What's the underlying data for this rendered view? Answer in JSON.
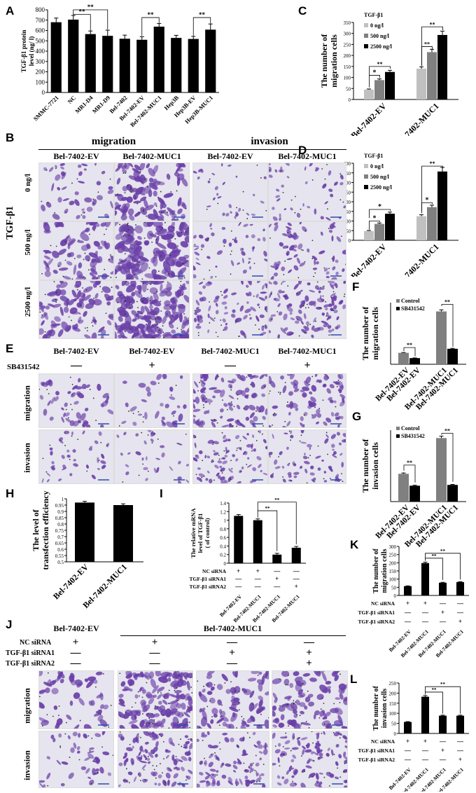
{
  "panels": {
    "A": "A",
    "B": "B",
    "C": "C",
    "D": "D",
    "E": "E",
    "F": "F",
    "G": "G",
    "H": "H",
    "I": "I",
    "J": "J",
    "K": "K",
    "L": "L"
  },
  "colors": {
    "light_gray": "#c0c0c0",
    "mid_gray": "#808080",
    "black": "#000000",
    "stain_purple": "#6a3fa8",
    "stain_bg": "#e6e4ee"
  },
  "chart_data": [
    {
      "id": "A",
      "type": "bar",
      "ylabel": "TGF-β1 protein level (ng/ l)",
      "ylim": [
        0,
        800
      ],
      "yticks": [
        0,
        100,
        200,
        300,
        400,
        500,
        600,
        700,
        800
      ],
      "categories": [
        "SMMC-7721",
        "NC",
        "MR1-D4",
        "MR1-D9",
        "Bel-7402",
        "Bel-7402-EV",
        "Bel-7402-MUC1",
        "Hep3B",
        "Hep3B-EV",
        "Hep3B-MUC1"
      ],
      "values": [
        680,
        705,
        565,
        548,
        520,
        510,
        637,
        528,
        518,
        608
      ],
      "errors": [
        40,
        40,
        30,
        55,
        35,
        30,
        30,
        25,
        25,
        55
      ],
      "sig": [
        {
          "from": 1,
          "to": 2,
          "label": "**"
        },
        {
          "from": 1,
          "to": 3,
          "label": "**"
        },
        {
          "from": 5,
          "to": 6,
          "label": "**"
        },
        {
          "from": 8,
          "to": 9,
          "label": "**"
        }
      ]
    },
    {
      "id": "C",
      "type": "bar",
      "ylabel": "The number of migration cells",
      "legend_title": "TGF-β1",
      "ylim": [
        0,
        350
      ],
      "yticks": [
        0,
        50,
        100,
        150,
        200,
        250,
        300,
        350
      ],
      "categories": [
        "Bel-7402-EV",
        "Bel-7402-MUC1"
      ],
      "series": [
        {
          "name": "0 ng/l",
          "values": [
            45,
            140
          ]
        },
        {
          "name": "500 ng/l",
          "values": [
            88,
            215
          ]
        },
        {
          "name": "2500 ng/l",
          "values": [
            125,
            293
          ]
        }
      ],
      "sig_label": "*"
    },
    {
      "id": "D",
      "type": "bar",
      "ylabel": "The number of invasion cells",
      "legend_title": "TGF-β1",
      "ylim": [
        0,
        400
      ],
      "yticks": [
        0,
        50,
        100,
        150,
        200,
        250,
        300,
        350,
        400
      ],
      "categories": [
        "Bel-7402-EV",
        "Bel-7402-MUC1"
      ],
      "series": [
        {
          "name": "0 ng/l",
          "values": [
            48,
            125
          ]
        },
        {
          "name": "500 ng/l",
          "values": [
            85,
            172
          ]
        },
        {
          "name": "2500 ng/l",
          "values": [
            138,
            357
          ]
        }
      ]
    },
    {
      "id": "F",
      "type": "bar",
      "ylabel": "The number of migration cells",
      "ylim": [
        0,
        350
      ],
      "categories": [
        "Bel-7402-EV",
        "Bel-7402-EV",
        "Bel-7402-MUC1",
        "Bel-7402-MUC1"
      ],
      "series": [
        {
          "name": "Control"
        },
        {
          "name": "SB431542"
        }
      ],
      "values": [
        65,
        35,
        300,
        88
      ]
    },
    {
      "id": "G",
      "type": "bar",
      "ylabel": "The number of invasion cells",
      "ylim": [
        0,
        180
      ],
      "categories": [
        "Bel-7402-EV",
        "Bel-7402-EV",
        "Bel-7402-MUC1",
        "Bel-7402-MUC1"
      ],
      "series": [
        {
          "name": "Control"
        },
        {
          "name": "SB431542"
        }
      ],
      "values": [
        70,
        40,
        160,
        42
      ]
    },
    {
      "id": "H",
      "type": "bar",
      "ylabel": "The level of transfection efficiency",
      "ylim": [
        0.5,
        1
      ],
      "yticks": [
        "0.5",
        "0.55",
        "0.6",
        "0.65",
        "0.7",
        "0.75",
        "0.8",
        "0.85",
        "0.9",
        "0.95",
        "1"
      ],
      "categories": [
        "Bel-7402-EV",
        "Bel-7402-MUC1"
      ],
      "values": [
        0.97,
        0.95
      ]
    },
    {
      "id": "I",
      "type": "bar",
      "ylabel": "The relative mRNA level of TGF-β1 ( of control)",
      "ylim": [
        0,
        1.4
      ],
      "yticks": [
        "0",
        "0.2",
        "0.4",
        "0.6",
        "0.8",
        "1",
        "1.2",
        "1.4"
      ],
      "categories": [
        "Bel-7402-EV",
        "Bel-7402-MUC1",
        "Bel-7402-MUC1",
        "Bel-7402-MUC1"
      ],
      "values": [
        1.1,
        1.0,
        0.2,
        0.36
      ]
    },
    {
      "id": "K",
      "type": "bar",
      "ylabel": "The number of migration cells",
      "ylim": [
        0,
        300
      ],
      "yticks": [
        0,
        50,
        100,
        150,
        200,
        250,
        300
      ],
      "categories": [
        "Bel-7402-EV",
        "Bel-7402-MUC1",
        "Bel-7402-MUC1",
        "Bel-7402-MUC1"
      ],
      "values": [
        57,
        198,
        78,
        82
      ]
    },
    {
      "id": "L",
      "type": "bar",
      "ylabel": "The number of invasion cells",
      "ylim": [
        0,
        250
      ],
      "yticks": [
        0,
        50,
        100,
        150,
        200,
        250
      ],
      "categories": [
        "Bel-7402-EV",
        "Bel-7402-MUC1",
        "Bel-7402-MUC1",
        "Bel-7402-MUC1"
      ],
      "values": [
        57,
        182,
        88,
        88
      ]
    }
  ],
  "labels": {
    "tgf_b1": "TGF-β1",
    "legend_0": "0 ng/l",
    "legend_500": "500 ng/l",
    "legend_2500": "2500 ng/l",
    "control": "Control",
    "sb": "SB431542",
    "sig2": "**",
    "sig1": "*",
    "cat_ev": "Bel-7402-EV",
    "cat_muc1": "Bel-7402-MUC1",
    "nc_sirna": "NC siRNA",
    "sirna1": "TGF-β1 siRNA1",
    "sirna2": "TGF-β1 siRNA2",
    "plus": "+",
    "minus": "—"
  },
  "B": {
    "migration": "migration",
    "invasion": "invasion",
    "col_ev": "Bel-7402-EV",
    "col_muc1": "Bel-7402-MUC1",
    "rows": [
      "0 ng/l",
      "500 ng/l",
      "2500 ng/l"
    ],
    "side": "TGF-β1"
  },
  "E": {
    "cols": [
      "Bel-7402-EV",
      "Bel-7402-EV",
      "Bel-7402-MUC1",
      "Bel-7402-MUC1"
    ],
    "sb": "SB431542",
    "signs": [
      "—",
      "+",
      "—",
      "+"
    ],
    "rows": [
      "migration",
      "invasion"
    ]
  },
  "J": {
    "col_ev": "Bel-7402-EV",
    "col_muc1": "Bel-7402-MUC1",
    "nc": [
      "+",
      "+",
      "—",
      "—"
    ],
    "si1": [
      "—",
      "—",
      "+",
      "+"
    ],
    "si2": [
      "—",
      "—",
      "—",
      "+"
    ],
    "rows": [
      "migration",
      "invasion"
    ]
  }
}
